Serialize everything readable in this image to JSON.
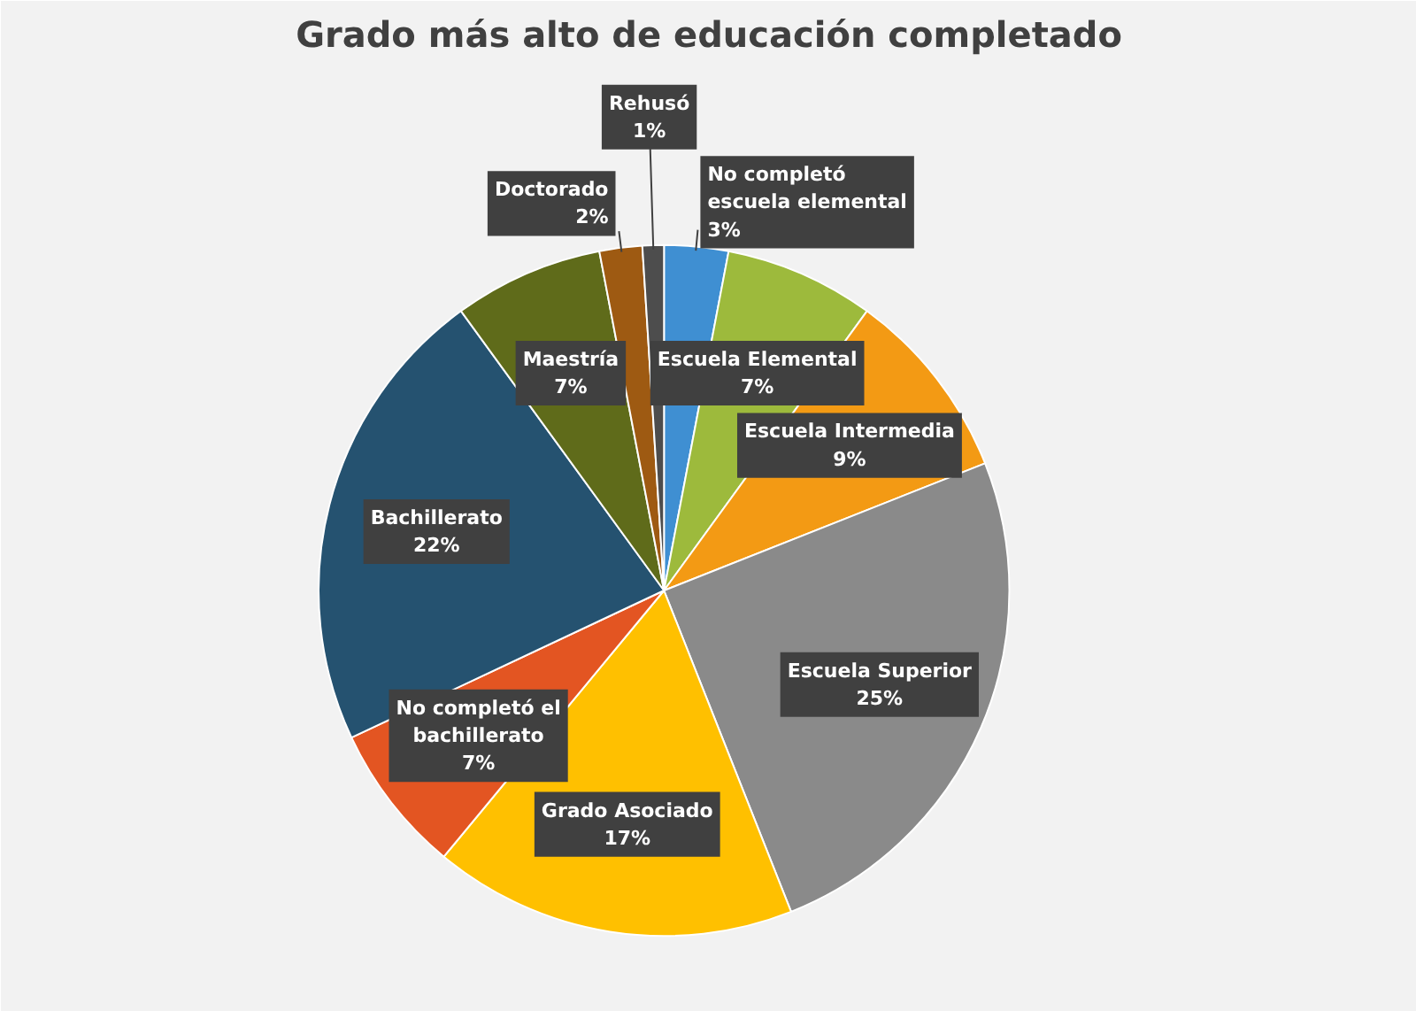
{
  "chart_data": {
    "type": "pie",
    "title": "Grado más alto de educación completado",
    "categories": [
      "No completó escuela elemental",
      "Escuela Elemental",
      "Escuela Intermedia",
      "Escuela Superior",
      "Grado Asociado",
      "No completó el bachillerato",
      "Bachillerato",
      "Maestría",
      "Doctorado",
      "Rehusó"
    ],
    "values": [
      3,
      7,
      9,
      25,
      17,
      7,
      22,
      7,
      2,
      1
    ],
    "value_labels": [
      "3%",
      "7%",
      "9%",
      "25%",
      "17%",
      "7%",
      "22%",
      "7%",
      "2%",
      "1%"
    ],
    "colors": [
      "#3f8fd2",
      "#9dba3c",
      "#f39a14",
      "#8a8a8a",
      "#ffc000",
      "#e35522",
      "#255270",
      "#5f6b1a",
      "#9e5a12",
      "#4d4d4d"
    ],
    "legend": false
  }
}
